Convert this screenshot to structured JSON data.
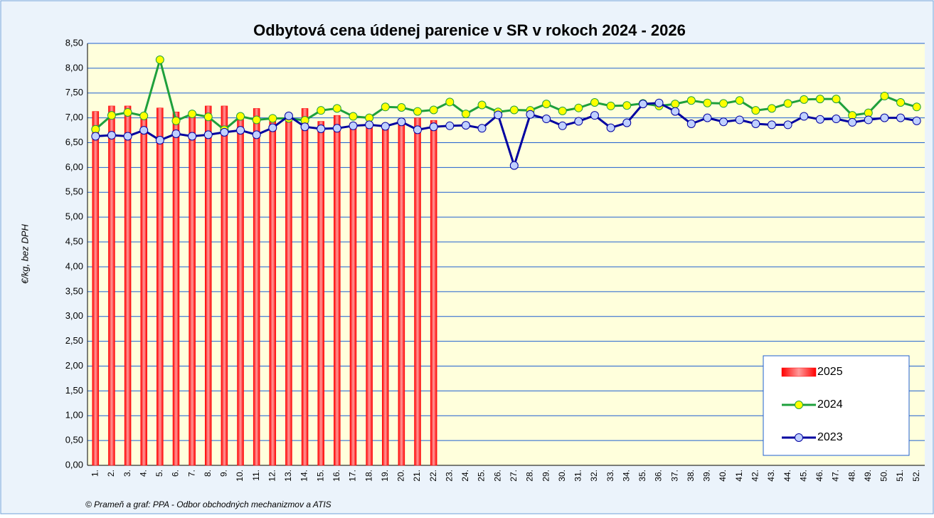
{
  "chart_data": {
    "type": "bar",
    "title": "Odbytová cena údenej parenice v SR v rokoch 2024 - 2026",
    "y_label": "€/kg, bez DPH",
    "source": "© Prameň a graf: PPA - Odbor obchodných mechanizmov a ATIS",
    "categories": [
      "1.",
      "2.",
      "3.",
      "4.",
      "5.",
      "6.",
      "7.",
      "8.",
      "9.",
      "10.",
      "11.",
      "12.",
      "13.",
      "14.",
      "15.",
      "16.",
      "17.",
      "18.",
      "19.",
      "20.",
      "21.",
      "22.",
      "23.",
      "24.",
      "25.",
      "26.",
      "27.",
      "28.",
      "29.",
      "30.",
      "31.",
      "32.",
      "33.",
      "34.",
      "35.",
      "36.",
      "37.",
      "38.",
      "39.",
      "40.",
      "41.",
      "42.",
      "43.",
      "44.",
      "45.",
      "46.",
      "47.",
      "48.",
      "49.",
      "50.",
      "51.",
      "52."
    ],
    "series": [
      {
        "name": "2025",
        "type": "bar",
        "color": "#ff0000",
        "values": [
          7.13,
          7.24,
          7.24,
          7.02,
          7.2,
          7.12,
          7.05,
          7.24,
          7.24,
          7.0,
          7.19,
          6.93,
          6.97,
          7.19,
          6.93,
          7.05,
          6.9,
          6.9,
          6.88,
          6.98,
          7.0,
          6.95,
          null,
          null,
          null,
          null,
          null,
          null,
          null,
          null,
          null,
          null,
          null,
          null,
          null,
          null,
          null,
          null,
          null,
          null,
          null,
          null,
          null,
          null,
          null,
          null,
          null,
          null,
          null,
          null,
          null,
          null
        ]
      },
      {
        "name": "2024",
        "type": "line",
        "color": "#1ea03c",
        "marker_color": "#ffff00",
        "values": [
          6.77,
          7.05,
          7.11,
          7.04,
          8.17,
          6.94,
          7.08,
          7.02,
          6.76,
          7.03,
          6.96,
          6.99,
          6.99,
          6.95,
          7.15,
          7.19,
          7.03,
          7.0,
          7.22,
          7.21,
          7.13,
          7.16,
          7.32,
          7.08,
          7.26,
          7.12,
          7.16,
          7.15,
          7.28,
          7.14,
          7.2,
          7.31,
          7.24,
          7.25,
          7.29,
          7.24,
          7.28,
          7.35,
          7.3,
          7.29,
          7.35,
          7.15,
          7.19,
          7.29,
          7.37,
          7.38,
          7.38,
          7.05,
          7.1,
          7.44,
          7.31,
          7.22
        ]
      },
      {
        "name": "2023",
        "type": "line",
        "color": "#0000a0",
        "marker_color": "#c0d0ff",
        "values": [
          6.63,
          6.65,
          6.63,
          6.75,
          6.55,
          6.68,
          6.63,
          6.66,
          6.71,
          6.75,
          6.66,
          6.8,
          7.04,
          6.82,
          6.78,
          6.79,
          6.84,
          6.86,
          6.83,
          6.92,
          6.76,
          6.82,
          6.84,
          6.85,
          6.79,
          7.06,
          6.04,
          7.07,
          6.98,
          6.84,
          6.93,
          7.05,
          6.8,
          6.9,
          7.28,
          7.3,
          7.13,
          6.88,
          7.0,
          6.92,
          6.96,
          6.88,
          6.86,
          6.86,
          7.03,
          6.97,
          6.98,
          6.91,
          6.96,
          7.0,
          7.0,
          6.94
        ]
      }
    ],
    "ylim": [
      0,
      8.5
    ],
    "yticks": [
      {
        "value": 0,
        "label": "0,00"
      },
      {
        "value": 0.5,
        "label": "0,50"
      },
      {
        "value": 1,
        "label": "1,00"
      },
      {
        "value": 1.5,
        "label": "1,50"
      },
      {
        "value": 2,
        "label": "2,00"
      },
      {
        "value": 2.5,
        "label": "2,50"
      },
      {
        "value": 3,
        "label": "3,00"
      },
      {
        "value": 3.5,
        "label": "3,50"
      },
      {
        "value": 4,
        "label": "4,00"
      },
      {
        "value": 4.5,
        "label": "4,50"
      },
      {
        "value": 5,
        "label": "5,00"
      },
      {
        "value": 5.5,
        "label": "5,50"
      },
      {
        "value": 6,
        "label": "6,00"
      },
      {
        "value": 6.5,
        "label": "6,50"
      },
      {
        "value": 7,
        "label": "7,00"
      },
      {
        "value": 7.5,
        "label": "7,50"
      },
      {
        "value": 8,
        "label": "8,00"
      },
      {
        "value": 8.5,
        "label": "8,50"
      }
    ],
    "grid": true,
    "legend": "lower right"
  }
}
